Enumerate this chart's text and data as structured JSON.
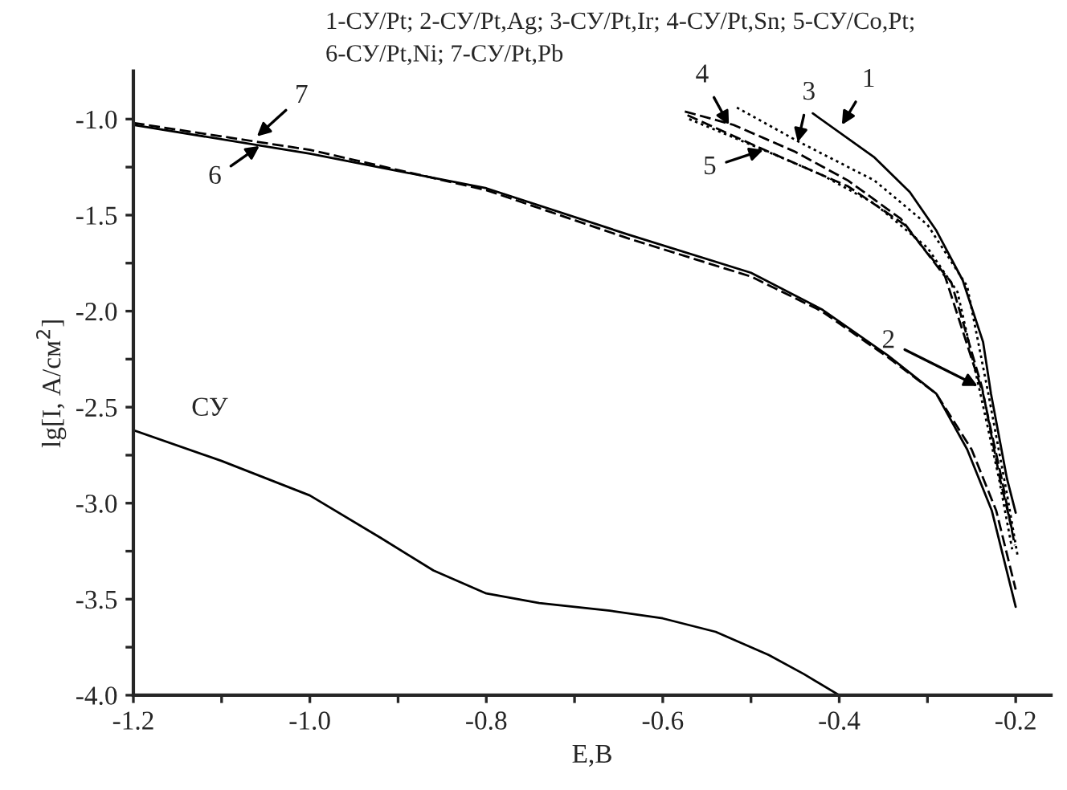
{
  "chart_data": {
    "type": "line",
    "title": "1-СУ/Pt; 2-СУ/Pt,Ag; 3-СУ/Pt,Ir; 4-СУ/Pt,Sn; 5-СУ/Co,Pt;\n6-СУ/Pt,Ni; 7-СУ/Pt,Pb",
    "xlabel": "E,B",
    "ylabel": "lg[I, A/см$^{2}$]",
    "xlim": [
      -1.2,
      -0.16
    ],
    "ylim": [
      -4.0,
      -0.75
    ],
    "xticks": [
      {
        "value": -1.2,
        "label": "-1.2"
      },
      {
        "value": -1.1,
        "label": null
      },
      {
        "value": -1.0,
        "label": "-1.0"
      },
      {
        "value": -0.9,
        "label": null
      },
      {
        "value": -0.8,
        "label": "-0.8"
      },
      {
        "value": -0.7,
        "label": null
      },
      {
        "value": -0.6,
        "label": "-0.6"
      },
      {
        "value": -0.5,
        "label": null
      },
      {
        "value": -0.4,
        "label": "-0.4"
      },
      {
        "value": -0.3,
        "label": null
      },
      {
        "value": -0.2,
        "label": "-0.2"
      }
    ],
    "yticks": [
      {
        "value": -4.0,
        "label": "-4.0"
      },
      {
        "value": -3.75,
        "label": null
      },
      {
        "value": -3.5,
        "label": "-3.5"
      },
      {
        "value": -3.25,
        "label": null
      },
      {
        "value": -3.0,
        "label": "-3.0"
      },
      {
        "value": -2.75,
        "label": null
      },
      {
        "value": -2.5,
        "label": "-2.5"
      },
      {
        "value": -2.25,
        "label": null
      },
      {
        "value": -2.0,
        "label": "-2.0"
      },
      {
        "value": -1.75,
        "label": null
      },
      {
        "value": -1.5,
        "label": "-1.5"
      },
      {
        "value": -1.25,
        "label": null
      },
      {
        "value": -1.0,
        "label": "-1.0"
      }
    ],
    "grid": false,
    "series": [
      {
        "name": "СУ",
        "color": "#000000",
        "line_style": "solid",
        "x": [
          -1.2,
          -1.1,
          -1.0,
          -0.92,
          -0.86,
          -0.8,
          -0.74,
          -0.66,
          -0.6,
          -0.54,
          -0.48,
          -0.44,
          -0.4
        ],
        "values": [
          -2.62,
          -2.78,
          -2.96,
          -3.18,
          -3.35,
          -3.47,
          -3.52,
          -3.56,
          -3.6,
          -3.67,
          -3.79,
          -3.89,
          -4.0
        ]
      },
      {
        "color": "#000000",
        "line_style": "solid",
        "x": [
          -1.2,
          -1.0,
          -0.8,
          -0.64,
          -0.5,
          -0.42,
          -0.345,
          -0.29,
          -0.255,
          -0.227,
          -0.2
        ],
        "values": [
          -1.03,
          -1.18,
          -1.36,
          -1.6,
          -1.8,
          -1.99,
          -2.23,
          -2.43,
          -2.72,
          -3.04,
          -3.54
        ]
      },
      {
        "color": "#000000",
        "line_style": "dashed",
        "x": [
          -1.2,
          -1.0,
          -0.8,
          -0.64,
          -0.5,
          -0.42,
          -0.345,
          -0.29,
          -0.25,
          -0.222,
          -0.2
        ],
        "values": [
          -1.02,
          -1.16,
          -1.37,
          -1.62,
          -1.82,
          -2.0,
          -2.24,
          -2.43,
          -2.72,
          -3.04,
          -3.45
        ]
      },
      {
        "color": "#000000",
        "line_style": "solid",
        "x": [
          -0.43,
          -0.36,
          -0.32,
          -0.29,
          -0.26,
          -0.237,
          -0.228,
          -0.21,
          -0.2
        ],
        "values": [
          -0.97,
          -1.2,
          -1.38,
          -1.58,
          -1.84,
          -2.16,
          -2.43,
          -2.87,
          -3.05
        ]
      },
      {
        "color": "#000000",
        "line_style": "dashed",
        "x": [
          -0.572,
          -0.48,
          -0.39,
          -0.326,
          -0.273,
          -0.238,
          -0.218,
          -0.203
        ],
        "values": [
          -0.98,
          -1.17,
          -1.35,
          -1.55,
          -1.85,
          -2.4,
          -2.87,
          -3.16
        ]
      },
      {
        "color": "#000000",
        "line_style": "dotted",
        "x": [
          -0.516,
          -0.445,
          -0.36,
          -0.3,
          -0.255,
          -0.231,
          -0.21,
          -0.198
        ],
        "values": [
          -0.94,
          -1.12,
          -1.32,
          -1.55,
          -1.87,
          -2.43,
          -2.95,
          -3.27
        ]
      },
      {
        "color": "#000000",
        "line_style": "dashed",
        "x": [
          -0.575,
          -0.52,
          -0.45,
          -0.39,
          -0.33,
          -0.28,
          -0.237,
          -0.216,
          -0.201
        ],
        "values": [
          -0.96,
          -1.03,
          -1.17,
          -1.32,
          -1.52,
          -1.82,
          -2.43,
          -2.87,
          -3.22
        ]
      },
      {
        "color": "#000000",
        "line_style": "dotted",
        "x": [
          -0.57,
          -0.486,
          -0.42,
          -0.36,
          -0.3,
          -0.266,
          -0.24,
          -0.219,
          -0.204
        ],
        "values": [
          -1.0,
          -1.16,
          -1.29,
          -1.44,
          -1.67,
          -1.9,
          -2.43,
          -2.87,
          -3.24
        ]
      }
    ],
    "annotations": [
      {
        "text": "1",
        "x": -0.397,
        "y": -1.03
      },
      {
        "text": "2",
        "x": -0.243,
        "y": -2.39
      },
      {
        "text": "3",
        "x": -0.447,
        "y": -1.12
      },
      {
        "text": "4",
        "x": -0.525,
        "y": -1.03
      },
      {
        "text": "5",
        "x": -0.486,
        "y": -1.16
      },
      {
        "text": "6",
        "x": -1.057,
        "y": -1.14
      },
      {
        "text": "7",
        "x": -1.06,
        "y": -1.09
      }
    ]
  }
}
